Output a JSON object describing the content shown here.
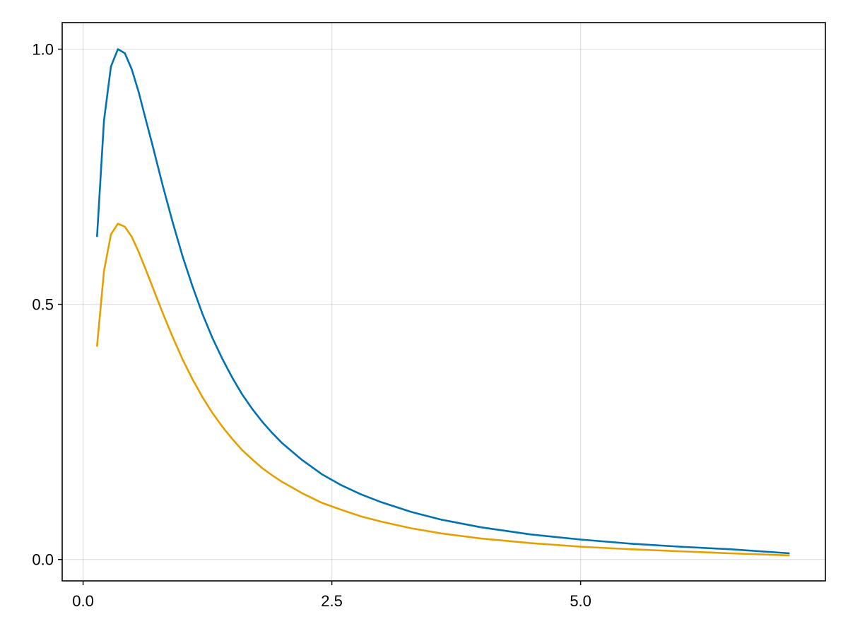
{
  "chart_data": {
    "type": "line",
    "title": "",
    "xlabel": "",
    "ylabel": "",
    "xlim": [
      -0.21,
      7.46
    ],
    "ylim": [
      -0.042,
      1.052
    ],
    "grid": true,
    "x_ticks": [
      0.0,
      2.5,
      5.0
    ],
    "x_tick_labels": [
      "0.0",
      "2.5",
      "5.0"
    ],
    "y_ticks": [
      0.0,
      0.5,
      1.0
    ],
    "y_tick_labels": [
      "0.0",
      "0.5",
      "1.0"
    ],
    "series": [
      {
        "color": "#0072b2",
        "x": [
          0.14,
          0.21,
          0.28,
          0.35,
          0.42,
          0.49,
          0.56,
          0.63,
          0.7,
          0.8,
          0.9,
          1.0,
          1.1,
          1.2,
          1.3,
          1.4,
          1.5,
          1.6,
          1.7,
          1.8,
          1.9,
          2.0,
          2.2,
          2.4,
          2.6,
          2.8,
          3.0,
          3.3,
          3.6,
          4.0,
          4.5,
          5.0,
          5.5,
          6.0,
          6.5,
          7.1
        ],
        "y": [
          0.632,
          0.86,
          0.966,
          1.0,
          0.992,
          0.96,
          0.915,
          0.862,
          0.81,
          0.733,
          0.661,
          0.594,
          0.535,
          0.481,
          0.434,
          0.393,
          0.356,
          0.323,
          0.295,
          0.27,
          0.248,
          0.228,
          0.195,
          0.167,
          0.145,
          0.127,
          0.112,
          0.093,
          0.078,
          0.063,
          0.049,
          0.039,
          0.031,
          0.025,
          0.02,
          0.012
        ]
      },
      {
        "color": "#e69f00",
        "x": [
          0.14,
          0.21,
          0.28,
          0.35,
          0.42,
          0.49,
          0.56,
          0.63,
          0.7,
          0.8,
          0.9,
          1.0,
          1.1,
          1.2,
          1.3,
          1.4,
          1.5,
          1.6,
          1.7,
          1.8,
          1.9,
          2.0,
          2.2,
          2.4,
          2.6,
          2.8,
          3.0,
          3.3,
          3.6,
          4.0,
          4.5,
          5.0,
          5.5,
          6.0,
          6.5,
          7.1
        ],
        "y": [
          0.417,
          0.565,
          0.637,
          0.658,
          0.652,
          0.632,
          0.602,
          0.568,
          0.533,
          0.483,
          0.436,
          0.392,
          0.353,
          0.318,
          0.287,
          0.26,
          0.236,
          0.214,
          0.196,
          0.179,
          0.165,
          0.152,
          0.13,
          0.111,
          0.097,
          0.084,
          0.074,
          0.061,
          0.051,
          0.041,
          0.032,
          0.025,
          0.02,
          0.016,
          0.012,
          0.008
        ]
      }
    ]
  }
}
